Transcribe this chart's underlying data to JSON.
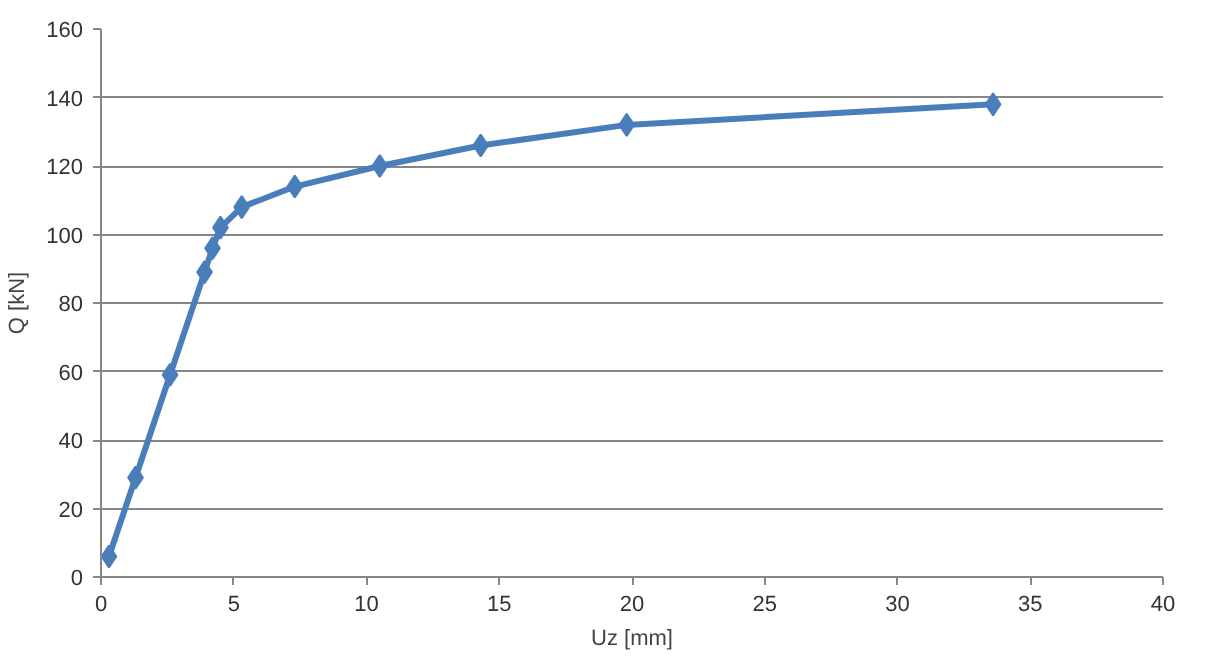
{
  "chart_data": {
    "type": "line",
    "xlabel": "Uz [mm]",
    "ylabel": "Q [kN]",
    "x": [
      0.3,
      1.3,
      2.6,
      3.9,
      4.2,
      4.5,
      5.3,
      7.3,
      10.5,
      14.3,
      19.8,
      33.6
    ],
    "series": [
      {
        "color": "#4a7ebb",
        "values": [
          6,
          29,
          59,
          89,
          96,
          102,
          108,
          114,
          120,
          126,
          132,
          138
        ]
      }
    ],
    "xlim": [
      0,
      40
    ],
    "xticks": [
      0,
      5,
      10,
      15,
      20,
      25,
      30,
      35,
      40
    ],
    "ylim": [
      0,
      160
    ],
    "yticks": [
      0,
      20,
      40,
      60,
      80,
      100,
      120,
      140,
      160
    ],
    "grid": "y",
    "marker": "diamond",
    "line_style": "solid"
  }
}
